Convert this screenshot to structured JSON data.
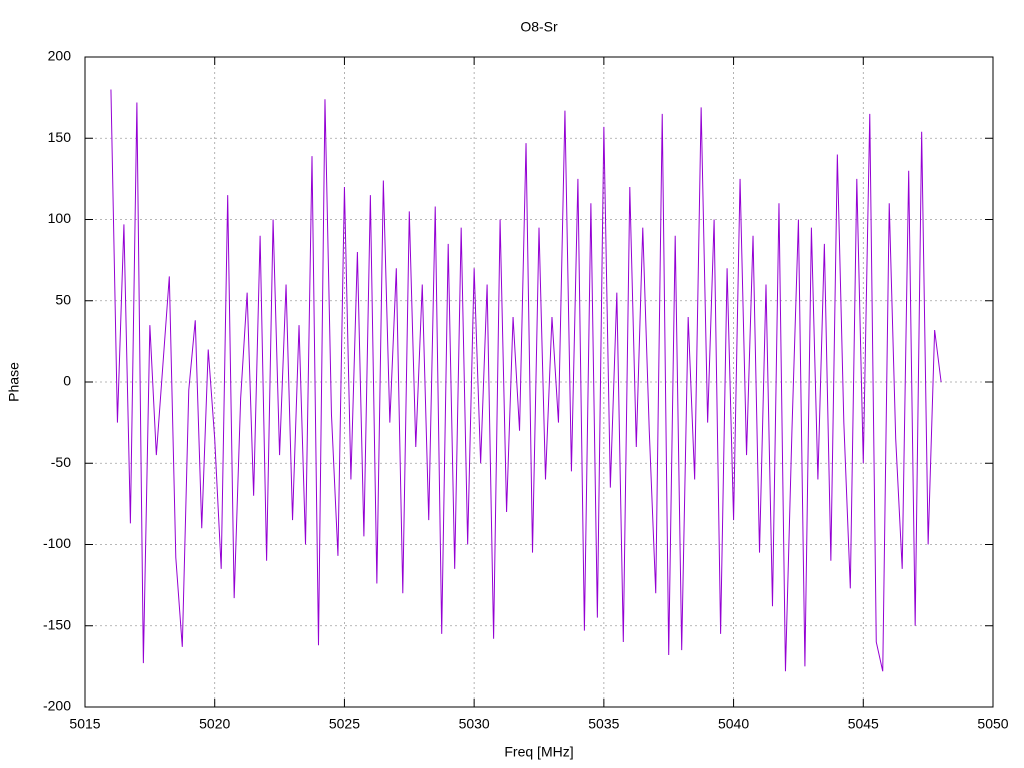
{
  "chart_data": {
    "type": "line",
    "title": "O8-Sr",
    "xlabel": "Freq [MHz]",
    "ylabel": "Phase",
    "x": [
      5016,
      5016.25,
      5016.5,
      5016.75,
      5017,
      5017.25,
      5017.5,
      5017.75,
      5018,
      5018.25,
      5018.5,
      5018.75,
      5019,
      5019.25,
      5019.5,
      5019.75,
      5020,
      5020.25,
      5020.5,
      5020.75,
      5021,
      5021.25,
      5021.5,
      5021.75,
      5022,
      5022.25,
      5022.5,
      5022.75,
      5023,
      5023.25,
      5023.5,
      5023.75,
      5024,
      5024.25,
      5024.5,
      5024.75,
      5025,
      5025.25,
      5025.5,
      5025.75,
      5026,
      5026.25,
      5026.5,
      5026.75,
      5027,
      5027.25,
      5027.5,
      5027.75,
      5028,
      5028.25,
      5028.5,
      5028.75,
      5029,
      5029.25,
      5029.5,
      5029.75,
      5030,
      5030.25,
      5030.5,
      5030.75,
      5031,
      5031.25,
      5031.5,
      5031.75,
      5032,
      5032.25,
      5032.5,
      5032.75,
      5033,
      5033.25,
      5033.5,
      5033.75,
      5034,
      5034.25,
      5034.5,
      5034.75,
      5035,
      5035.25,
      5035.5,
      5035.75,
      5036,
      5036.25,
      5036.5,
      5036.75,
      5037,
      5037.25,
      5037.5,
      5037.75,
      5038,
      5038.25,
      5038.5,
      5038.75,
      5039,
      5039.25,
      5039.5,
      5039.75,
      5040,
      5040.25,
      5040.5,
      5040.75,
      5041,
      5041.25,
      5041.5,
      5041.75,
      5042,
      5042.25,
      5042.5,
      5042.75,
      5043,
      5043.25,
      5043.5,
      5043.75,
      5044,
      5044.25,
      5044.5,
      5044.75,
      5045,
      5045.25,
      5045.5,
      5045.75,
      5046,
      5046.25,
      5046.5,
      5046.75,
      5047,
      5047.25,
      5047.5,
      5047.75,
      5048
    ],
    "series": [
      {
        "name": "O8-Sr",
        "color": "#9400d3",
        "values": [
          180,
          -25,
          97,
          -87,
          172,
          -173,
          35,
          -45,
          10,
          65,
          -108,
          -163,
          -5,
          38,
          -90,
          20,
          -35,
          -115,
          115,
          -133,
          -10,
          55,
          -70,
          90,
          -110,
          100,
          -45,
          60,
          -85,
          35,
          -100,
          139,
          -162,
          174,
          -20,
          -107,
          120,
          -60,
          80,
          -95,
          115,
          -124,
          124,
          -25,
          70,
          -130,
          105,
          -40,
          60,
          -85,
          108,
          -155,
          85,
          -115,
          95,
          -100,
          70,
          -50,
          60,
          -158,
          100,
          -80,
          40,
          -30,
          147,
          -105,
          95,
          -60,
          40,
          -25,
          167,
          -55,
          125,
          -153,
          110,
          -145,
          157,
          -65,
          55,
          -160,
          120,
          -40,
          95,
          -30,
          -130,
          165,
          -168,
          90,
          -165,
          40,
          -60,
          169,
          -25,
          100,
          -155,
          70,
          -85,
          125,
          -45,
          90,
          -105,
          60,
          -138,
          110,
          -178,
          -30,
          100,
          -175,
          95,
          -60,
          85,
          -110,
          140,
          -25,
          -127,
          125,
          -50,
          165,
          -160,
          -178,
          110,
          -35,
          -115,
          130,
          -150,
          154,
          -100,
          32,
          0
        ]
      }
    ],
    "xlim": [
      5015,
      5050
    ],
    "xticks": [
      5015,
      5020,
      5025,
      5030,
      5035,
      5040,
      5045,
      5050
    ],
    "ylim": [
      -200,
      200
    ],
    "yticks": [
      -200,
      -150,
      -100,
      -50,
      0,
      50,
      100,
      150,
      200
    ],
    "grid": true
  }
}
